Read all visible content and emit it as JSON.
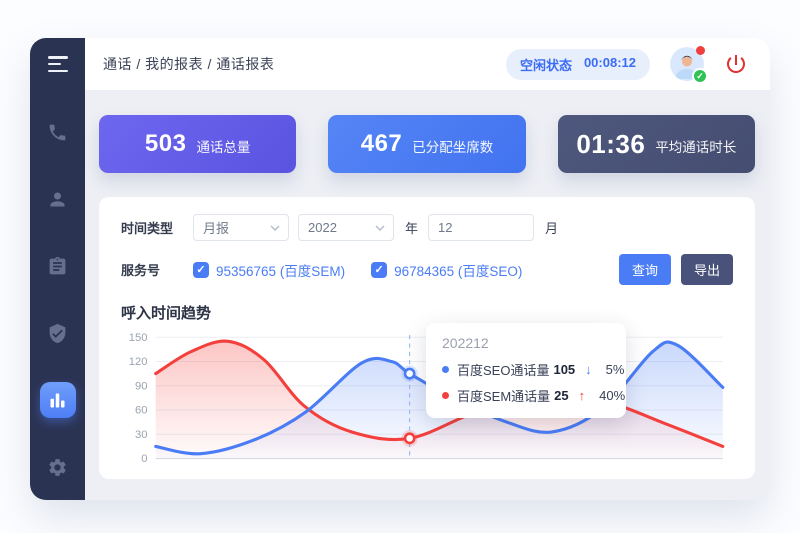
{
  "colors": {
    "sidebar_bg": "#2b3352",
    "active_nav": "#4e7ef6",
    "accent_blue": "#4a7df5",
    "series_seo": "#4a7df5",
    "series_sem": "#f4403c",
    "card_total": "#625ce8",
    "card_assigned": "#4b7cf3",
    "card_duration": "#4a5276",
    "status_text": "#3b6cf4",
    "power_red": "#e03131"
  },
  "topbar": {
    "breadcrumb": "通话 / 我的报表 / 通话报表",
    "status_label": "空闲状态",
    "status_time": "00:08:12"
  },
  "stats": [
    {
      "value": "503",
      "label": "通话总量"
    },
    {
      "value": "467",
      "label": "已分配坐席数"
    },
    {
      "value": "01:36",
      "label": "平均通话时长"
    }
  ],
  "filters": {
    "time_type_label": "时间类型",
    "period_value": "月报",
    "year_value": "2022",
    "year_suffix": "年",
    "month_value": "12",
    "month_suffix": "月",
    "service_label": "服务号",
    "services": [
      {
        "label": "95356765 (百度SEM)",
        "checked": "✓"
      },
      {
        "label": "96784365 (百度SEO)",
        "checked": "✓"
      }
    ],
    "query_button": "查询",
    "export_button": "导出"
  },
  "chart": {
    "title": "呼入时间趋势",
    "tooltip": {
      "period": "202212",
      "rows": [
        {
          "label": "百度SEO通话量",
          "value": "105",
          "arrow": "↓",
          "pct": "5%"
        },
        {
          "label": "百度SEM通话量",
          "value": "25",
          "arrow": "↑",
          "pct": "40%"
        }
      ]
    }
  },
  "chart_data": {
    "type": "line",
    "title": "呼入时间趋势",
    "ylim": [
      0,
      150
    ],
    "yticks": [
      150,
      120,
      90,
      60,
      30,
      0
    ],
    "grid": true,
    "x_axis_labels": [],
    "series": [
      {
        "name": "百度SEO通话量",
        "color": "#4a7df5",
        "points": [
          [
            0,
            15
          ],
          [
            45,
            6
          ],
          [
            100,
            24
          ],
          [
            150,
            58
          ],
          [
            205,
            118
          ],
          [
            235,
            120
          ],
          [
            253,
            105
          ],
          [
            300,
            72
          ],
          [
            350,
            45
          ],
          [
            395,
            33
          ],
          [
            445,
            62
          ],
          [
            495,
            132
          ],
          [
            520,
            140
          ],
          [
            565,
            88
          ]
        ]
      },
      {
        "name": "百度SEM通话量",
        "color": "#f4403c",
        "points": [
          [
            0,
            105
          ],
          [
            35,
            132
          ],
          [
            72,
            145
          ],
          [
            108,
            122
          ],
          [
            148,
            65
          ],
          [
            195,
            33
          ],
          [
            253,
            25
          ],
          [
            320,
            58
          ],
          [
            390,
            82
          ],
          [
            450,
            70
          ],
          [
            510,
            42
          ],
          [
            565,
            15
          ]
        ]
      }
    ],
    "highlight": {
      "x": 253,
      "period": "202212",
      "markers": [
        {
          "series": 0,
          "value": 105
        },
        {
          "series": 1,
          "value": 25
        }
      ]
    }
  }
}
